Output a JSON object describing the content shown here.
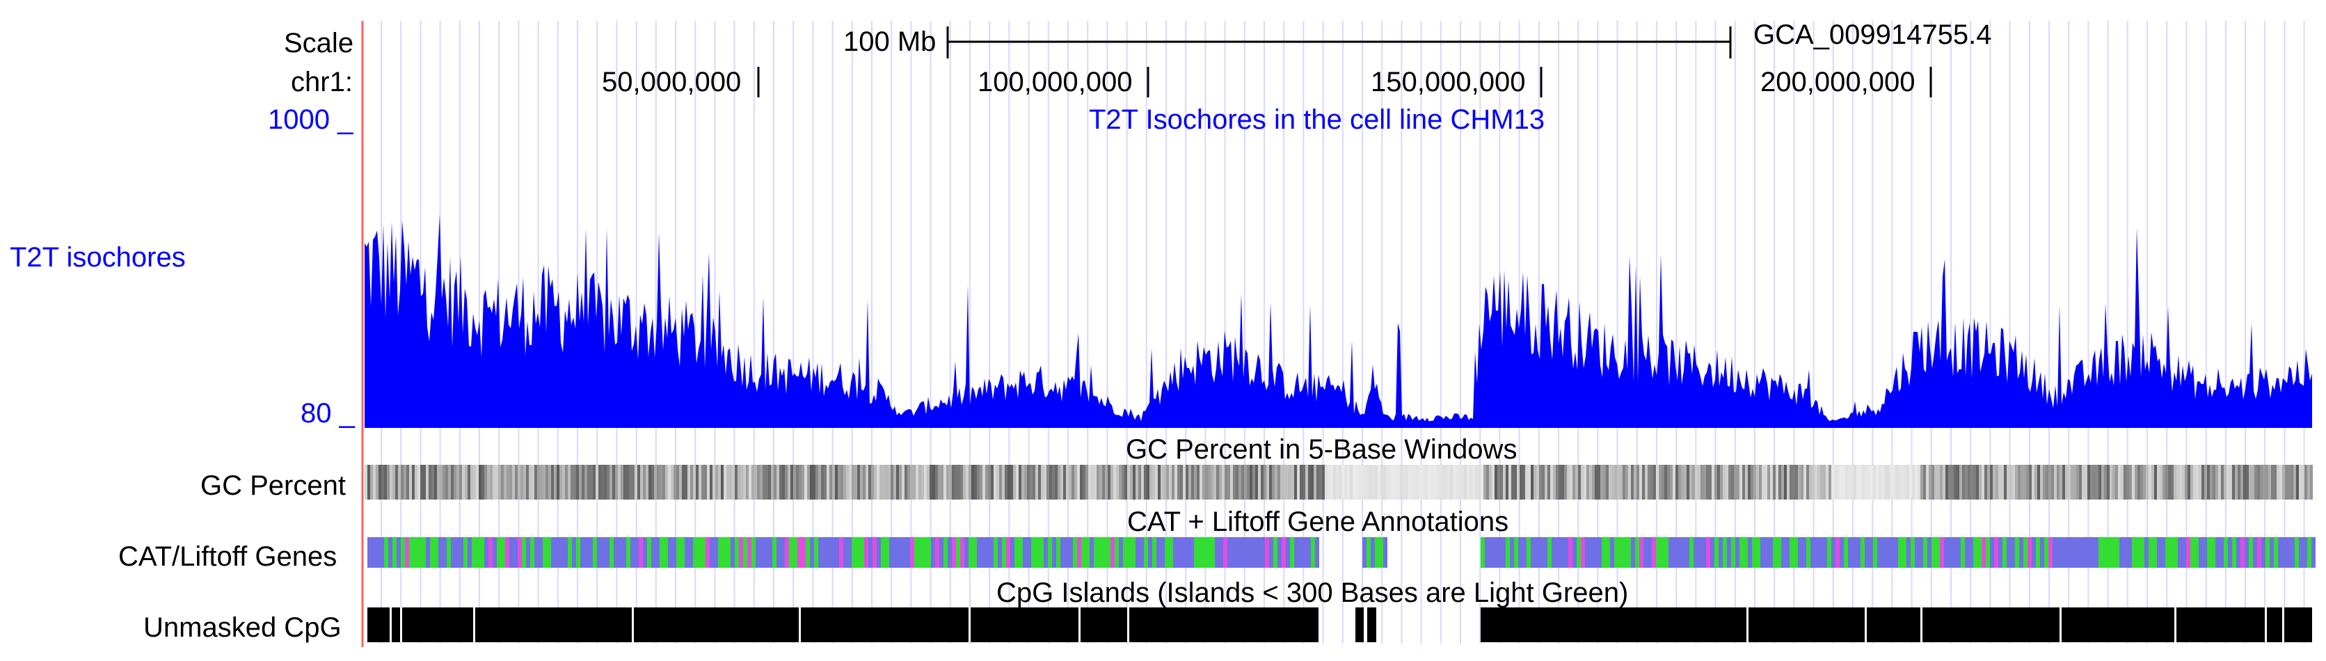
{
  "header": {
    "scale_label": "Scale",
    "scale_bar_label": "100 Mb",
    "assembly": "GCA_009914755.4",
    "chrom_label": "chr1:",
    "ruler_ticks": [
      "50,000,000",
      "100,000,000",
      "150,000,000",
      "200,000,000"
    ]
  },
  "tracks": {
    "isochores": {
      "left_label": "T2T isochores",
      "center_label": "T2T Isochores in the cell line CHM13",
      "y_max": "1000 _",
      "y_min": "80 _",
      "color": "#0000ff"
    },
    "gc_percent": {
      "left_label": "GC Percent",
      "center_label": "GC Percent in 5-Base Windows"
    },
    "cat_liftoff": {
      "left_label": "CAT/Liftoff Genes",
      "center_label": "CAT + Liftoff Gene Annotations",
      "colors": [
        "#6f6fe6",
        "#33dd33",
        "#e04ee0"
      ]
    },
    "cpg": {
      "left_label": "Unmasked CpG",
      "center_label": "CpG Islands (Islands < 300 Bases are Light Green)"
    }
  },
  "colors": {
    "grid_line": "#d8d8ff",
    "left_border": "#ff4040",
    "track_blue": "#0000ff"
  }
}
